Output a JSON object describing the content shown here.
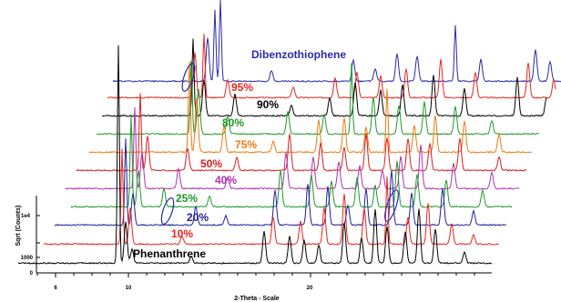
{
  "chart_data": {
    "type": "line",
    "xlabel": "2-Theta - Scale",
    "ylabel": "Sqrt (Counts)",
    "x_ticks": [
      6,
      10,
      20
    ],
    "y_ticks": [
      "1e4",
      "1000",
      "0"
    ],
    "series": [
      {
        "name": "Phenanthrene",
        "color": "#000000"
      },
      {
        "name": "10%",
        "color": "#e8251f"
      },
      {
        "name": "20%",
        "color": "#20209a"
      },
      {
        "name": "25%",
        "color": "#1e9a2a"
      },
      {
        "name": "40%",
        "color": "#b030b0"
      },
      {
        "name": "50%",
        "color": "#d81f1f"
      },
      {
        "name": "75%",
        "color": "#f07a10"
      },
      {
        "name": "80%",
        "color": "#1e9a2a"
      },
      {
        "name": "90%",
        "color": "#000000"
      },
      {
        "name": "95%",
        "color": "#e8251f"
      },
      {
        "name": "Dibenzothiophene",
        "color": "#2a2aa8"
      }
    ],
    "annotations": [
      "ellipse-marker",
      "ellipse-marker",
      "ellipse-marker"
    ]
  }
}
